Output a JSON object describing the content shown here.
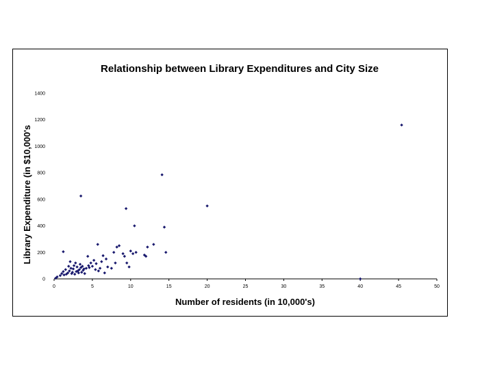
{
  "chart_data": {
    "type": "scatter",
    "title": "Relationship between Library Expenditures and City Size",
    "xlabel": "Number of residents (in 10,000's)",
    "ylabel": "Library Expenditure (in $10,000's",
    "xlim": [
      0,
      50
    ],
    "ylim": [
      0,
      1400
    ],
    "xticks": [
      "0",
      "5",
      "10",
      "15",
      "20",
      "25",
      "30",
      "35",
      "40",
      "45",
      "50"
    ],
    "yticks": [
      "0",
      "200",
      "400",
      "600",
      "800",
      "1000",
      "1200",
      "1400"
    ],
    "grid": false,
    "legend": "none",
    "marker_color": "#1a1a6e",
    "points": [
      [
        0.2,
        5
      ],
      [
        0.4,
        15
      ],
      [
        0.8,
        25
      ],
      [
        1.0,
        40
      ],
      [
        1.2,
        55
      ],
      [
        1.3,
        30
      ],
      [
        1.5,
        70
      ],
      [
        1.6,
        35
      ],
      [
        1.8,
        45
      ],
      [
        1.9,
        95
      ],
      [
        2.0,
        60
      ],
      [
        2.1,
        130
      ],
      [
        2.2,
        80
      ],
      [
        2.3,
        40
      ],
      [
        2.4,
        50
      ],
      [
        2.5,
        75
      ],
      [
        2.6,
        100
      ],
      [
        2.7,
        35
      ],
      [
        2.8,
        120
      ],
      [
        2.9,
        55
      ],
      [
        3.0,
        90
      ],
      [
        3.1,
        60
      ],
      [
        3.2,
        45
      ],
      [
        3.3,
        70
      ],
      [
        3.4,
        110
      ],
      [
        3.5,
        85
      ],
      [
        3.6,
        50
      ],
      [
        3.7,
        95
      ],
      [
        3.8,
        65
      ],
      [
        3.9,
        75
      ],
      [
        4.0,
        40
      ],
      [
        4.2,
        80
      ],
      [
        4.4,
        170
      ],
      [
        4.5,
        100
      ],
      [
        4.6,
        85
      ],
      [
        4.8,
        120
      ],
      [
        5.0,
        95
      ],
      [
        5.2,
        140
      ],
      [
        5.4,
        70
      ],
      [
        5.5,
        115
      ],
      [
        5.7,
        260
      ],
      [
        5.8,
        60
      ],
      [
        6.0,
        80
      ],
      [
        6.2,
        130
      ],
      [
        6.4,
        175
      ],
      [
        6.6,
        45
      ],
      [
        6.8,
        150
      ],
      [
        7.0,
        90
      ],
      [
        7.5,
        80
      ],
      [
        7.8,
        200
      ],
      [
        8.0,
        120
      ],
      [
        8.2,
        240
      ],
      [
        8.5,
        250
      ],
      [
        9.0,
        190
      ],
      [
        9.2,
        170
      ],
      [
        9.5,
        120
      ],
      [
        9.8,
        90
      ],
      [
        10.0,
        210
      ],
      [
        10.3,
        190
      ],
      [
        10.7,
        200
      ],
      [
        11.8,
        180
      ],
      [
        12.0,
        170
      ],
      [
        12.2,
        240
      ],
      [
        13.0,
        260
      ],
      [
        14.6,
        200
      ],
      [
        1.2,
        205
      ],
      [
        3.5,
        625
      ],
      [
        9.4,
        530
      ],
      [
        10.5,
        400
      ],
      [
        14.4,
        390
      ],
      [
        14.1,
        785
      ],
      [
        20.0,
        550
      ],
      [
        40.0,
        0
      ],
      [
        45.4,
        1160
      ]
    ]
  }
}
